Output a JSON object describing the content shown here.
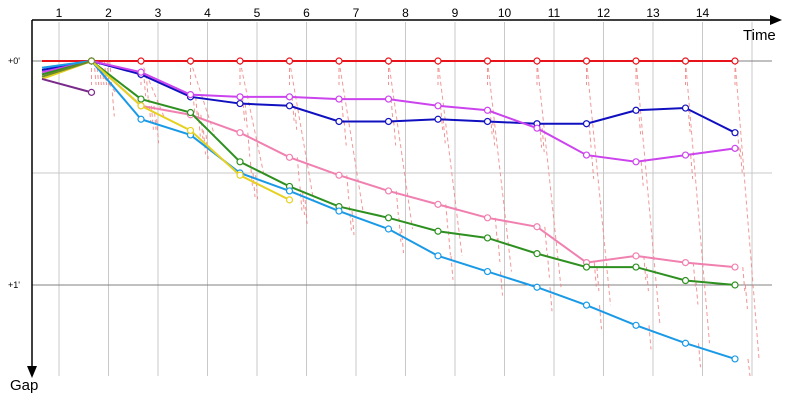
{
  "chart_data": {
    "type": "line",
    "title": "",
    "xlabel": "Time",
    "ylabel": "Gap",
    "x_tick_labels": [
      "1",
      "2",
      "3",
      "4",
      "5",
      "6",
      "7",
      "8",
      "9",
      "10",
      "11",
      "12",
      "13",
      "14"
    ],
    "y_tick_labels": [
      "+0'",
      "+1'"
    ],
    "y_scale": "minutes",
    "y_range_minutes": [
      0,
      1.4
    ],
    "y_inverted": true,
    "grid": true,
    "colors": {
      "grid_major": "#808080",
      "grid_minor": "#c8c8c8",
      "connector": "#f08080"
    },
    "series": [
      {
        "color": "#e8131a",
        "values": [
          0.0,
          0.0,
          0.0,
          0.0,
          0.0,
          0.0,
          0.0,
          0.0,
          0.0,
          0.0,
          0.0,
          0.0,
          0.0,
          0.0,
          0.0
        ]
      },
      {
        "color": "#1010c0",
        "values": [
          0.04,
          0.0,
          0.06,
          0.16,
          0.19,
          0.2,
          0.27,
          0.27,
          0.26,
          0.27,
          0.28,
          0.28,
          0.22,
          0.21,
          0.32
        ]
      },
      {
        "color": "#cc44ee",
        "values": [
          0.05,
          0.0,
          0.05,
          0.15,
          0.16,
          0.16,
          0.17,
          0.17,
          0.2,
          0.22,
          0.3,
          0.42,
          0.45,
          0.42,
          0.39
        ]
      },
      {
        "color": "#f080b0",
        "values": [
          0.06,
          0.0,
          0.2,
          0.24,
          0.32,
          0.43,
          0.51,
          0.58,
          0.64,
          0.7,
          0.74,
          0.9,
          0.87,
          0.9,
          0.92
        ]
      },
      {
        "color": "#2e9020",
        "values": [
          0.06,
          0.0,
          0.17,
          0.23,
          0.45,
          0.56,
          0.65,
          0.7,
          0.76,
          0.79,
          0.86,
          0.92,
          0.92,
          0.98,
          1.0
        ]
      },
      {
        "color": "#1a9ae6",
        "values": [
          0.03,
          0.0,
          0.26,
          0.33,
          0.5,
          0.58,
          0.67,
          0.75,
          0.87,
          0.94,
          1.01,
          1.09,
          1.18,
          1.26,
          1.33
        ]
      },
      {
        "color": "#e6d020",
        "values": [
          0.08,
          0.0,
          0.2,
          0.31,
          0.51,
          0.62
        ]
      },
      {
        "color": "#6b8a2a",
        "values": [
          0.07,
          0.0
        ]
      },
      {
        "color": "#7a2a8a",
        "values": [
          0.08,
          0.14
        ]
      }
    ]
  }
}
